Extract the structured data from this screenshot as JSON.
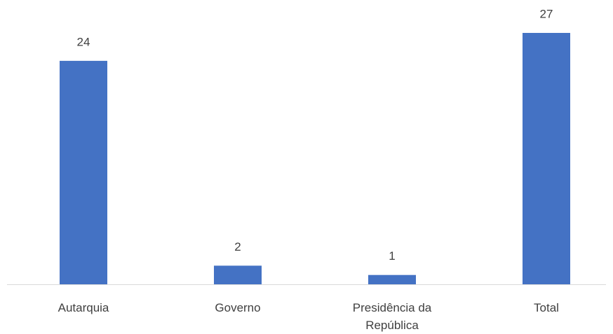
{
  "chart_data": {
    "type": "bar",
    "categories": [
      "Autarquia",
      "Governo",
      "Presidência da República",
      "Total"
    ],
    "values": [
      24,
      2,
      1,
      27
    ],
    "color": "#4472c4"
  }
}
